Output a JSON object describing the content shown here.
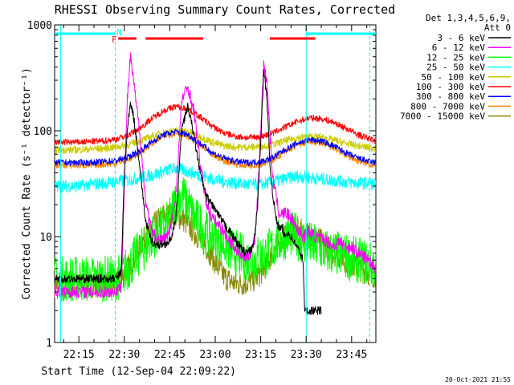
{
  "chart_data": {
    "type": "line",
    "title": "RHESSI Observing Summary Count Rates, Corrected",
    "xlabel": "Start Time (12-Sep-04 22:09:22)",
    "ylabel": "Corrected Count Rate (s⁻¹ detector⁻¹)",
    "ylim": [
      1,
      1000
    ],
    "yscale": "log",
    "xlim_minutes": [
      -8,
      98
    ],
    "x_ticks": [
      {
        "label": "22:15",
        "minutes": 0
      },
      {
        "label": "22:30",
        "minutes": 15
      },
      {
        "label": "22:45",
        "minutes": 30
      },
      {
        "label": "23:00",
        "minutes": 45
      },
      {
        "label": "23:15",
        "minutes": 60
      },
      {
        "label": "23:30",
        "minutes": 75
      },
      {
        "label": "23:45",
        "minutes": 90
      }
    ],
    "y_ticks": [
      {
        "label": "1",
        "value": 1
      },
      {
        "label": "10",
        "value": 10
      },
      {
        "label": "100",
        "value": 100
      },
      {
        "label": "1000",
        "value": 1000
      }
    ],
    "legend_header": [
      "Det 1,3,4,5,6,9,",
      "Att 0"
    ],
    "legend_position": "right",
    "series": [
      {
        "name": "3 - 6 keV",
        "color": "#000000",
        "x": [
          -8,
          10,
          12,
          13,
          14,
          15,
          16,
          17,
          18,
          20,
          22,
          24,
          26,
          28,
          30,
          32,
          34,
          36,
          38,
          40,
          42,
          44,
          46,
          48,
          50,
          52,
          54,
          55,
          57,
          58,
          59,
          60,
          61,
          62,
          63,
          64,
          65,
          66,
          67,
          68,
          69,
          70,
          72,
          73,
          74,
          74.5,
          75,
          78,
          80
        ],
        "y": [
          4,
          4,
          4,
          4.3,
          4.6,
          40,
          100,
          180,
          140,
          50,
          14,
          9,
          8.3,
          8.5,
          9,
          14,
          110,
          170,
          90,
          40,
          24,
          20,
          16,
          13,
          11,
          9,
          7.5,
          7,
          7.5,
          10,
          20,
          80,
          360,
          220,
          50,
          25,
          15,
          12,
          12,
          10,
          11,
          10,
          8,
          7,
          6,
          2,
          2,
          2,
          2
        ]
      },
      {
        "name": "6 - 12 keV",
        "color": "#ff00ff",
        "x": [
          -8,
          10,
          12,
          13,
          14,
          15,
          16,
          17,
          18,
          20,
          22,
          24,
          26,
          28,
          30,
          32,
          34,
          36,
          38,
          40,
          42,
          44,
          46,
          48,
          50,
          52,
          54,
          56,
          58,
          59,
          60,
          61,
          62,
          63,
          64,
          65,
          66,
          67,
          68,
          70,
          72,
          74,
          76,
          78,
          80,
          82,
          84,
          86,
          88,
          90,
          92,
          94,
          96,
          98
        ],
        "y": [
          3,
          3,
          3,
          3.2,
          3.4,
          30,
          200,
          500,
          300,
          100,
          22,
          11,
          9.5,
          9.5,
          11,
          25,
          200,
          260,
          150,
          50,
          21,
          15,
          13,
          11,
          9,
          7.5,
          6.5,
          6.5,
          9,
          25,
          100,
          430,
          300,
          100,
          35,
          25,
          17,
          16,
          17,
          15,
          12,
          10,
          11,
          10,
          9.5,
          9,
          8,
          9,
          8,
          8,
          7,
          6.5,
          6,
          5
        ]
      },
      {
        "name": "12 - 25 keV",
        "color": "#00ff00",
        "x": [
          -8,
          10,
          12,
          14,
          16,
          18,
          20,
          22,
          24,
          26,
          28,
          30,
          32,
          34,
          36,
          38,
          40,
          42,
          44,
          46,
          48,
          50,
          52,
          54,
          56,
          58,
          60,
          62,
          64,
          66,
          68,
          70,
          72,
          74,
          76,
          78,
          80,
          82,
          84,
          86,
          88,
          90,
          92,
          94,
          96,
          98
        ],
        "y": [
          4,
          4,
          4,
          4.3,
          5,
          6,
          7,
          8,
          10,
          11,
          12,
          14,
          22,
          25,
          20,
          15,
          13,
          11,
          10,
          9,
          8.5,
          7.5,
          7,
          6.5,
          6,
          6.2,
          6.5,
          7,
          8,
          9,
          10,
          10.5,
          10,
          9,
          8.5,
          8,
          7.5,
          7.2,
          7,
          6.8,
          6.5,
          6.2,
          6,
          5.8,
          5.5,
          5.2
        ]
      },
      {
        "name": "25 - 50 keV",
        "color": "#00ffff",
        "x": [
          -8,
          0,
          4,
          8,
          12,
          16,
          20,
          24,
          28,
          30,
          32,
          34,
          36,
          40,
          44,
          48,
          52,
          56,
          60,
          64,
          68,
          72,
          76,
          80,
          84,
          88,
          92,
          96,
          98
        ],
        "y": [
          30,
          30,
          31,
          32,
          33,
          34,
          36,
          38,
          41,
          43,
          44,
          43,
          41,
          38,
          35,
          33,
          32,
          31,
          31,
          33,
          35,
          37,
          36,
          35,
          34,
          33,
          32,
          32,
          31
        ]
      },
      {
        "name": "50 - 100 keV",
        "color": "#cccc00",
        "x": [
          -8,
          0,
          4,
          8,
          12,
          16,
          20,
          24,
          28,
          32,
          36,
          40,
          44,
          48,
          52,
          56,
          60,
          64,
          68,
          72,
          76,
          80,
          84,
          88,
          92,
          96,
          98
        ],
        "y": [
          66,
          66,
          67,
          68,
          70,
          73,
          80,
          88,
          96,
          100,
          98,
          88,
          78,
          72,
          70,
          70,
          71,
          74,
          80,
          86,
          88,
          87,
          82,
          76,
          72,
          69,
          68
        ]
      },
      {
        "name": "100 - 300 keV",
        "color": "#ff0000",
        "x": [
          -8,
          0,
          4,
          8,
          12,
          16,
          20,
          24,
          28,
          32,
          36,
          40,
          44,
          48,
          52,
          56,
          60,
          64,
          68,
          72,
          76,
          80,
          84,
          88,
          92,
          96,
          98
        ],
        "y": [
          78,
          78,
          79,
          80,
          83,
          90,
          105,
          130,
          155,
          170,
          160,
          135,
          110,
          95,
          88,
          86,
          88,
          95,
          108,
          122,
          132,
          130,
          120,
          106,
          92,
          84,
          80
        ]
      },
      {
        "name": "300 - 800 keV",
        "color": "#0000ff",
        "x": [
          -8,
          0,
          4,
          8,
          12,
          16,
          20,
          24,
          28,
          32,
          36,
          40,
          44,
          48,
          52,
          56,
          60,
          64,
          68,
          72,
          76,
          80,
          84,
          88,
          92,
          96,
          98
        ],
        "y": [
          50,
          50,
          50,
          51,
          52,
          56,
          64,
          78,
          92,
          98,
          92,
          76,
          62,
          55,
          51,
          50,
          51,
          56,
          66,
          76,
          82,
          80,
          72,
          62,
          55,
          51,
          50
        ]
      },
      {
        "name": "800 - 7000 keV",
        "color": "#ff8800",
        "x": [
          -8,
          0,
          4,
          8,
          12,
          16,
          20,
          24,
          28,
          32,
          36,
          40,
          44,
          48,
          52,
          56,
          60,
          64,
          68,
          72,
          76,
          80,
          84,
          88,
          92,
          96,
          98
        ],
        "y": [
          47,
          47,
          47,
          48,
          49,
          53,
          61,
          75,
          89,
          95,
          89,
          73,
          59,
          52,
          48,
          47,
          48,
          53,
          63,
          73,
          79,
          77,
          69,
          59,
          52,
          48,
          47
        ]
      },
      {
        "name": "7000 - 15000 keV",
        "color": "#888800",
        "x": [
          -8,
          10,
          12,
          14,
          16,
          18,
          20,
          22,
          24,
          26,
          28,
          30,
          32,
          34,
          36,
          38,
          40,
          42,
          44,
          46,
          48,
          50,
          52,
          54,
          56,
          58,
          60,
          62,
          64,
          66,
          68,
          70,
          72,
          74,
          76,
          78,
          80,
          82,
          84,
          86,
          88,
          90,
          92,
          94,
          96,
          98
        ],
        "y": [
          3.5,
          3.5,
          3.6,
          4,
          5,
          6,
          8,
          10,
          12,
          14,
          16,
          16,
          15.5,
          15,
          13,
          11,
          9.5,
          8,
          6.5,
          5,
          4.2,
          3.8,
          3.6,
          3.6,
          3.7,
          4,
          4.5,
          5.5,
          7,
          8.5,
          10,
          11,
          11.5,
          11,
          10.5,
          10,
          9,
          8,
          7,
          6.5,
          6,
          5.5,
          5,
          4.8,
          4.5,
          4.2
        ]
      }
    ],
    "annotations": {
      "flags": [
        {
          "label": "F",
          "color": "#ff0000"
        },
        {
          "label": "N",
          "color": "#00ffff"
        }
      ],
      "night_bars_minutes": [
        [
          -8,
          12
        ],
        [
          75,
          98
        ]
      ],
      "flare_bars_minutes": [
        [
          13,
          19
        ],
        [
          22,
          41
        ],
        [
          63,
          78
        ]
      ],
      "dashed_lines_minutes": [
        12,
        96
      ],
      "solid_lines_minutes": [
        -6,
        75
      ]
    },
    "footer": "20-Oct-2021 21:55"
  }
}
